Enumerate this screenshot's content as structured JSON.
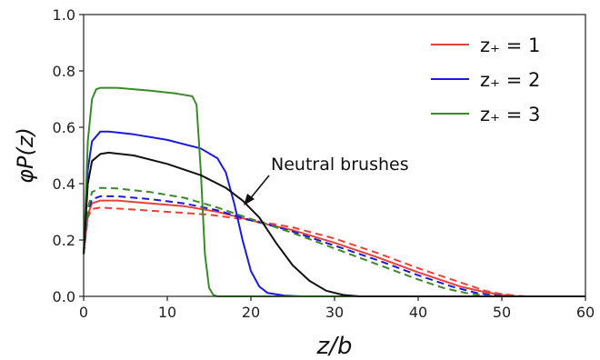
{
  "chart_data": {
    "type": "line",
    "xlabel": "z/b",
    "ylabel": "φP(z)",
    "xlim": [
      0,
      60
    ],
    "ylim": [
      0,
      1.0
    ],
    "xticks": [
      "0",
      "10",
      "20",
      "30",
      "40",
      "50",
      "60"
    ],
    "yticks": [
      "0.0",
      "0.2",
      "0.4",
      "0.6",
      "0.8",
      "1.0"
    ],
    "legend_position": "top-right",
    "legend": [
      {
        "label": "z₊ = 1",
        "color": "#e8413a"
      },
      {
        "label": "z₊ = 2",
        "color": "#1919e0"
      },
      {
        "label": "z₊ = 3",
        "color": "#3a8a2a"
      }
    ],
    "annotation": {
      "text": "Neutral brushes",
      "x": 18.8,
      "y": 0.31
    },
    "series": [
      {
        "id": "z1-solid",
        "color": "#e8413a",
        "style": "solid",
        "points": [
          [
            0,
            0.15
          ],
          [
            0.5,
            0.29
          ],
          [
            1,
            0.33
          ],
          [
            2,
            0.34
          ],
          [
            4,
            0.34
          ],
          [
            8,
            0.33
          ],
          [
            12,
            0.32
          ],
          [
            16,
            0.3
          ],
          [
            20,
            0.27
          ],
          [
            22,
            0.255
          ],
          [
            25,
            0.235
          ],
          [
            30,
            0.19
          ],
          [
            35,
            0.14
          ],
          [
            40,
            0.085
          ],
          [
            45,
            0.035
          ],
          [
            48,
            0.015
          ],
          [
            50,
            0.005
          ],
          [
            52,
            0.0
          ],
          [
            60,
            0.0
          ]
        ]
      },
      {
        "id": "z1-dashed",
        "color": "#e8413a",
        "style": "dashed",
        "points": [
          [
            0,
            0.15
          ],
          [
            0.5,
            0.28
          ],
          [
            1,
            0.31
          ],
          [
            2,
            0.315
          ],
          [
            5,
            0.31
          ],
          [
            10,
            0.3
          ],
          [
            15,
            0.29
          ],
          [
            20,
            0.27
          ],
          [
            22,
            0.26
          ],
          [
            25,
            0.245
          ],
          [
            30,
            0.205
          ],
          [
            35,
            0.155
          ],
          [
            40,
            0.1
          ],
          [
            45,
            0.05
          ],
          [
            48,
            0.02
          ],
          [
            50,
            0.008
          ],
          [
            52,
            0.002
          ],
          [
            53,
            0.0
          ],
          [
            60,
            0.0
          ]
        ]
      },
      {
        "id": "z2-solid",
        "color": "#1919e0",
        "style": "solid",
        "points": [
          [
            0,
            0.15
          ],
          [
            0.5,
            0.45
          ],
          [
            1,
            0.55
          ],
          [
            2,
            0.585
          ],
          [
            3,
            0.585
          ],
          [
            6,
            0.575
          ],
          [
            10,
            0.555
          ],
          [
            14,
            0.525
          ],
          [
            16,
            0.49
          ],
          [
            17,
            0.44
          ],
          [
            18,
            0.33
          ],
          [
            19,
            0.2
          ],
          [
            20,
            0.09
          ],
          [
            21,
            0.035
          ],
          [
            22,
            0.012
          ],
          [
            24,
            0.003
          ],
          [
            26,
            0.0
          ],
          [
            60,
            0.0
          ]
        ]
      },
      {
        "id": "z2-dashed",
        "color": "#1919e0",
        "style": "dashed",
        "points": [
          [
            0,
            0.15
          ],
          [
            0.5,
            0.3
          ],
          [
            1,
            0.345
          ],
          [
            2,
            0.355
          ],
          [
            4,
            0.355
          ],
          [
            8,
            0.345
          ],
          [
            12,
            0.33
          ],
          [
            16,
            0.305
          ],
          [
            20,
            0.27
          ],
          [
            22,
            0.255
          ],
          [
            25,
            0.23
          ],
          [
            30,
            0.18
          ],
          [
            35,
            0.13
          ],
          [
            40,
            0.075
          ],
          [
            44,
            0.035
          ],
          [
            47,
            0.012
          ],
          [
            49,
            0.004
          ],
          [
            51,
            0.0
          ],
          [
            60,
            0.0
          ]
        ]
      },
      {
        "id": "z3-solid",
        "color": "#3a8a2a",
        "style": "solid",
        "points": [
          [
            0,
            0.15
          ],
          [
            0.5,
            0.55
          ],
          [
            1,
            0.7
          ],
          [
            1.5,
            0.735
          ],
          [
            2,
            0.74
          ],
          [
            4,
            0.74
          ],
          [
            8,
            0.73
          ],
          [
            11,
            0.72
          ],
          [
            13,
            0.71
          ],
          [
            13.5,
            0.68
          ],
          [
            14,
            0.45
          ],
          [
            14.5,
            0.15
          ],
          [
            15,
            0.03
          ],
          [
            15.5,
            0.005
          ],
          [
            16,
            0.0
          ],
          [
            60,
            0.0
          ]
        ]
      },
      {
        "id": "z3-dashed",
        "color": "#3a8a2a",
        "style": "dashed",
        "points": [
          [
            0,
            0.15
          ],
          [
            0.5,
            0.31
          ],
          [
            1,
            0.37
          ],
          [
            2,
            0.385
          ],
          [
            4,
            0.383
          ],
          [
            8,
            0.37
          ],
          [
            12,
            0.35
          ],
          [
            16,
            0.315
          ],
          [
            20,
            0.275
          ],
          [
            22,
            0.255
          ],
          [
            25,
            0.225
          ],
          [
            30,
            0.17
          ],
          [
            35,
            0.115
          ],
          [
            40,
            0.06
          ],
          [
            43,
            0.03
          ],
          [
            46,
            0.01
          ],
          [
            48,
            0.003
          ],
          [
            50,
            0.0
          ],
          [
            60,
            0.0
          ]
        ]
      },
      {
        "id": "neutral",
        "color": "#111111",
        "style": "solid",
        "points": [
          [
            0,
            0.15
          ],
          [
            0.5,
            0.4
          ],
          [
            1,
            0.48
          ],
          [
            2,
            0.505
          ],
          [
            3,
            0.51
          ],
          [
            6,
            0.5
          ],
          [
            10,
            0.47
          ],
          [
            14,
            0.43
          ],
          [
            17,
            0.385
          ],
          [
            19,
            0.34
          ],
          [
            21,
            0.28
          ],
          [
            23,
            0.19
          ],
          [
            25,
            0.11
          ],
          [
            27,
            0.055
          ],
          [
            29,
            0.02
          ],
          [
            31,
            0.005
          ],
          [
            33,
            0.0
          ],
          [
            60,
            0.0
          ]
        ]
      }
    ]
  }
}
